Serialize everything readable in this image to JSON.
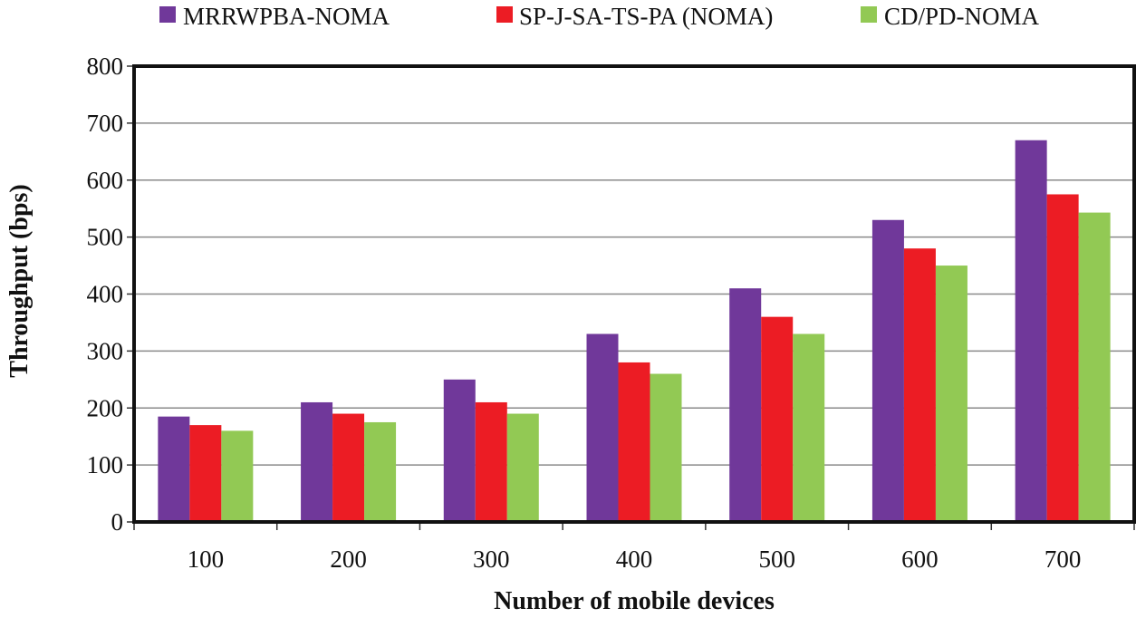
{
  "chart_data": {
    "type": "bar",
    "title": "",
    "xlabel": "Number of mobile devices",
    "ylabel": "Throughput (bps)",
    "ylim": [
      0,
      800
    ],
    "yticks": [
      0,
      100,
      200,
      300,
      400,
      500,
      600,
      700,
      800
    ],
    "grid": true,
    "legend_position": "top",
    "categories": [
      "100",
      "200",
      "300",
      "400",
      "500",
      "600",
      "700"
    ],
    "series": [
      {
        "name": "MRRWPBA-NOMA",
        "color": "#70389a",
        "values": [
          185,
          210,
          250,
          330,
          410,
          530,
          670
        ]
      },
      {
        "name": "SP-J-SA-TS-PA (NOMA)",
        "color": "#ec1c24",
        "values": [
          170,
          190,
          210,
          280,
          360,
          480,
          575
        ]
      },
      {
        "name": "CD/PD-NOMA",
        "color": "#92c954",
        "values": [
          160,
          175,
          190,
          260,
          330,
          450,
          543
        ]
      }
    ]
  }
}
